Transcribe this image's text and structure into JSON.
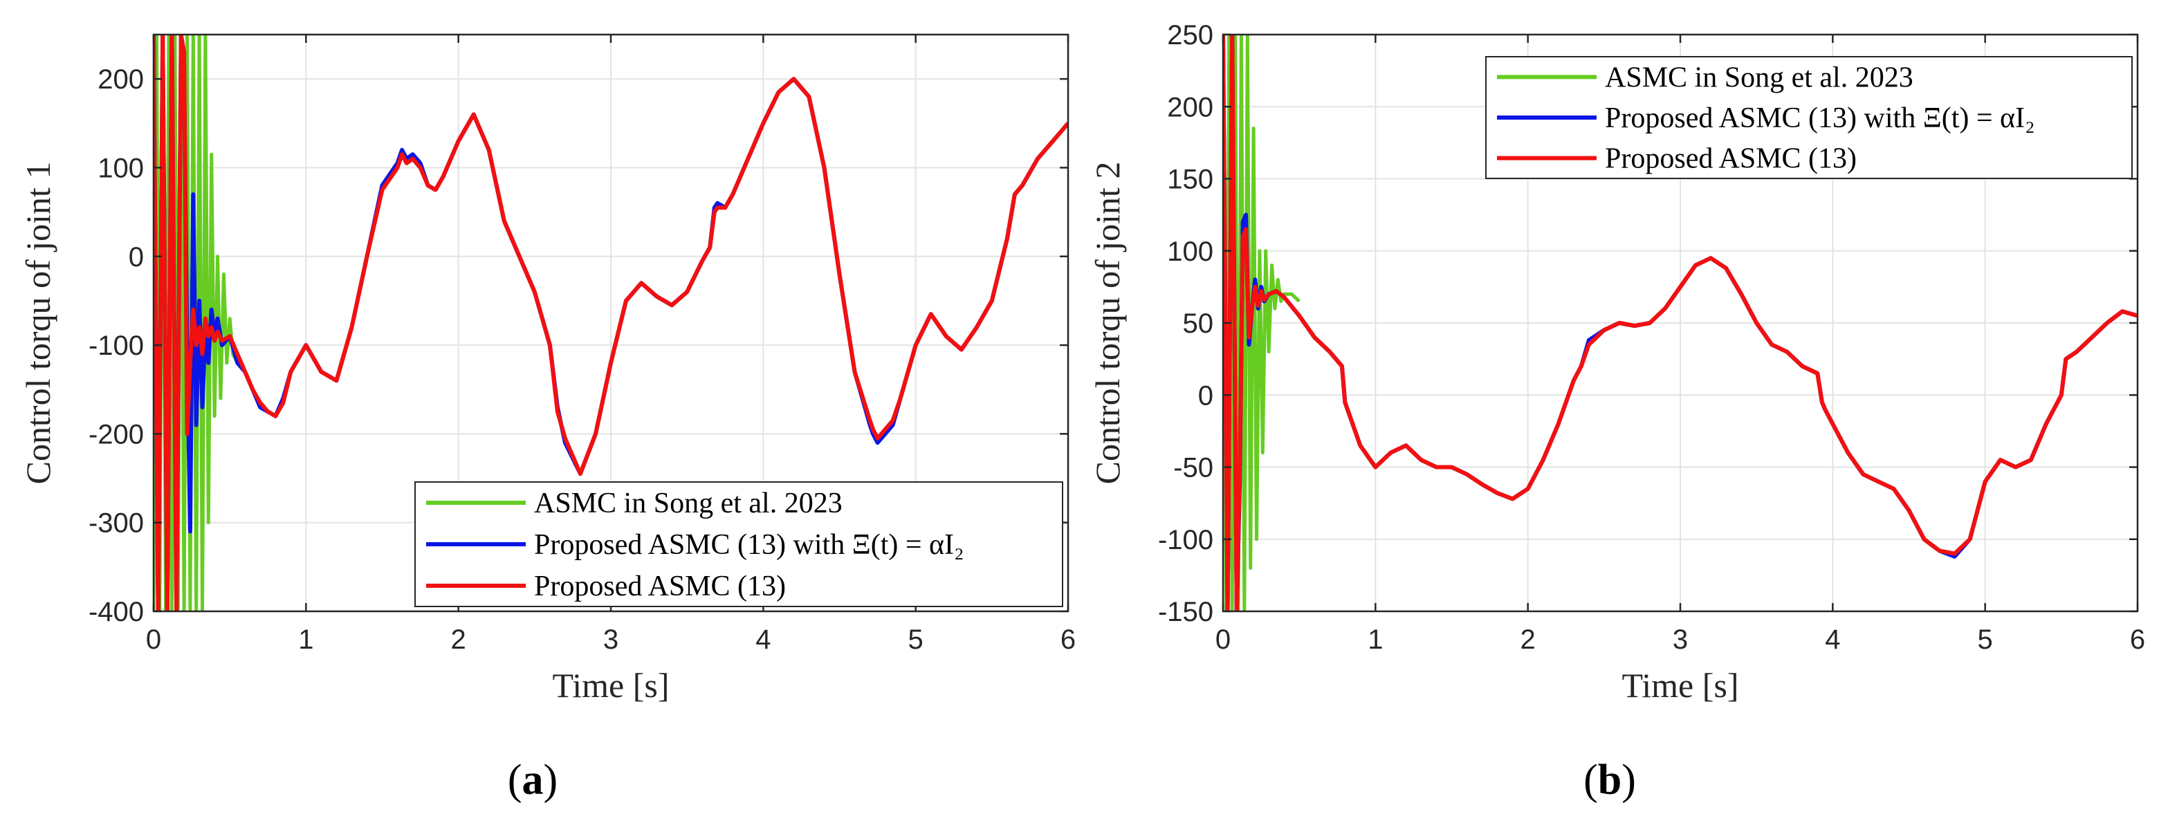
{
  "figure": {
    "captions": [
      {
        "open": "(",
        "letter": "a",
        "close": ")"
      },
      {
        "open": "(",
        "letter": "b",
        "close": ")"
      }
    ]
  },
  "chart_data": [
    {
      "type": "line",
      "title": "",
      "xlabel": "Time [s]",
      "ylabel": "Control torqu of joint 1",
      "xlim": [
        0,
        6
      ],
      "ylim": [
        -400,
        250
      ],
      "xticks": [
        0,
        1,
        2,
        3,
        4,
        5,
        6
      ],
      "yticks": [
        -400,
        -300,
        -200,
        -100,
        0,
        100,
        200
      ],
      "grid": true,
      "legend_position": "bottom-right",
      "series": [
        {
          "name": "ASMC in Song et al. 2023",
          "color": "#66cc22",
          "x": [
            0,
            0.02,
            0.04,
            0.06,
            0.08,
            0.1,
            0.12,
            0.14,
            0.16,
            0.18,
            0.2,
            0.22,
            0.24,
            0.26,
            0.28,
            0.3,
            0.32,
            0.34,
            0.36,
            0.38,
            0.4,
            0.42,
            0.44,
            0.46,
            0.48,
            0.5,
            0.52,
            0.55
          ],
          "y": [
            -400,
            250,
            -400,
            250,
            -400,
            250,
            -400,
            250,
            -400,
            250,
            -400,
            250,
            -400,
            250,
            -400,
            250,
            -400,
            250,
            -300,
            115,
            -180,
            0,
            -160,
            -20,
            -120,
            -70,
            -110,
            -120
          ]
        },
        {
          "name": "Proposed ASMC (13) with Ξ(t) = αI₂",
          "color": "#0a16e6",
          "x": [
            0,
            0.03,
            0.06,
            0.09,
            0.12,
            0.15,
            0.18,
            0.2,
            0.22,
            0.24,
            0.26,
            0.28,
            0.3,
            0.32,
            0.34,
            0.36,
            0.38,
            0.4,
            0.42,
            0.45,
            0.5,
            0.55,
            0.6,
            0.65,
            0.7,
            0.75,
            0.8,
            0.85,
            0.9,
            1.0,
            1.1,
            1.2,
            1.3,
            1.4,
            1.5,
            1.6,
            1.63,
            1.66,
            1.7,
            1.75,
            1.8,
            1.85,
            1.9,
            2.0,
            2.1,
            2.2,
            2.3,
            2.4,
            2.45,
            2.5,
            2.55,
            2.6,
            2.65,
            2.7,
            2.8,
            2.9,
            3.0,
            3.1,
            3.2,
            3.3,
            3.4,
            3.5,
            3.6,
            3.65,
            3.68,
            3.7,
            3.75,
            3.8,
            3.9,
            4.0,
            4.1,
            4.2,
            4.3,
            4.4,
            4.5,
            4.6,
            4.7,
            4.72,
            4.75,
            4.8,
            4.85,
            4.9,
            5.0,
            5.1,
            5.2,
            5.3,
            5.4,
            5.5,
            5.6,
            5.65,
            5.7,
            5.8,
            5.9,
            6.0
          ],
          "y": [
            250,
            -400,
            250,
            -400,
            250,
            -400,
            250,
            200,
            -100,
            -310,
            70,
            -190,
            -50,
            -170,
            -80,
            -120,
            -60,
            -90,
            -70,
            -100,
            -90,
            -120,
            -130,
            -150,
            -170,
            -175,
            -180,
            -160,
            -130,
            -100,
            -130,
            -140,
            -80,
            0,
            80,
            105,
            120,
            110,
            115,
            105,
            80,
            75,
            90,
            130,
            160,
            120,
            40,
            0,
            -20,
            -40,
            -70,
            -100,
            -170,
            -210,
            -245,
            -200,
            -120,
            -50,
            -30,
            -45,
            -55,
            -40,
            -5,
            10,
            55,
            60,
            55,
            70,
            110,
            150,
            185,
            200,
            180,
            100,
            -20,
            -130,
            -190,
            -200,
            -210,
            -200,
            -190,
            -160,
            -100,
            -65,
            -90,
            -105,
            -80,
            -50,
            20,
            70,
            80,
            110,
            130,
            150
          ]
        },
        {
          "name": "Proposed ASMC (13)",
          "color": "#f21010",
          "x": [
            0,
            0.03,
            0.06,
            0.09,
            0.12,
            0.15,
            0.18,
            0.2,
            0.22,
            0.24,
            0.26,
            0.28,
            0.3,
            0.32,
            0.34,
            0.36,
            0.38,
            0.4,
            0.42,
            0.45,
            0.5,
            0.55,
            0.6,
            0.65,
            0.7,
            0.75,
            0.8,
            0.85,
            0.9,
            1.0,
            1.1,
            1.2,
            1.3,
            1.4,
            1.5,
            1.6,
            1.63,
            1.66,
            1.7,
            1.75,
            1.8,
            1.85,
            1.9,
            2.0,
            2.1,
            2.2,
            2.3,
            2.4,
            2.45,
            2.5,
            2.55,
            2.6,
            2.65,
            2.7,
            2.8,
            2.9,
            3.0,
            3.1,
            3.2,
            3.3,
            3.4,
            3.5,
            3.6,
            3.65,
            3.68,
            3.7,
            3.75,
            3.8,
            3.9,
            4.0,
            4.1,
            4.2,
            4.3,
            4.4,
            4.5,
            4.6,
            4.7,
            4.72,
            4.75,
            4.8,
            4.85,
            4.9,
            5.0,
            5.1,
            5.2,
            5.3,
            5.4,
            5.5,
            5.6,
            5.65,
            5.7,
            5.8,
            5.9,
            6.0
          ],
          "y": [
            250,
            -400,
            250,
            -400,
            250,
            -400,
            250,
            230,
            -200,
            -120,
            -60,
            -100,
            -80,
            -110,
            -70,
            -90,
            -80,
            -95,
            -85,
            -95,
            -90,
            -110,
            -130,
            -150,
            -165,
            -175,
            -180,
            -165,
            -130,
            -100,
            -130,
            -140,
            -80,
            0,
            75,
            100,
            115,
            105,
            110,
            100,
            80,
            75,
            90,
            130,
            160,
            120,
            40,
            0,
            -20,
            -40,
            -70,
            -100,
            -175,
            -205,
            -245,
            -200,
            -120,
            -50,
            -30,
            -45,
            -55,
            -40,
            -5,
            10,
            50,
            55,
            55,
            70,
            110,
            150,
            185,
            200,
            180,
            100,
            -20,
            -130,
            -185,
            -195,
            -205,
            -195,
            -185,
            -160,
            -100,
            -65,
            -90,
            -105,
            -80,
            -50,
            20,
            70,
            80,
            110,
            130,
            150
          ]
        }
      ]
    },
    {
      "type": "line",
      "title": "",
      "xlabel": "Time [s]",
      "ylabel": "Control torqu of joint 2",
      "xlim": [
        0,
        6
      ],
      "ylim": [
        -150,
        250
      ],
      "xticks": [
        0,
        1,
        2,
        3,
        4,
        5,
        6
      ],
      "yticks": [
        -150,
        -100,
        -50,
        0,
        50,
        100,
        150,
        200,
        250
      ],
      "grid": true,
      "legend_position": "top-right",
      "series": [
        {
          "name": "ASMC in Song et al. 2023",
          "color": "#66cc22",
          "x": [
            0,
            0.02,
            0.04,
            0.06,
            0.08,
            0.1,
            0.12,
            0.14,
            0.16,
            0.18,
            0.2,
            0.22,
            0.24,
            0.26,
            0.28,
            0.3,
            0.32,
            0.34,
            0.36,
            0.38,
            0.4,
            0.45,
            0.5
          ],
          "y": [
            250,
            -150,
            250,
            -150,
            250,
            -150,
            250,
            -150,
            250,
            -120,
            185,
            -100,
            100,
            -40,
            100,
            30,
            90,
            60,
            80,
            65,
            70,
            70,
            65
          ]
        },
        {
          "name": "Proposed ASMC (13) with Ξ(t) = αI₂",
          "color": "#0a16e6",
          "x": [
            0,
            0.03,
            0.06,
            0.09,
            0.11,
            0.13,
            0.15,
            0.17,
            0.19,
            0.21,
            0.23,
            0.25,
            0.27,
            0.3,
            0.35,
            0.4,
            0.5,
            0.6,
            0.7,
            0.78,
            0.8,
            0.85,
            0.9,
            1.0,
            1.1,
            1.2,
            1.3,
            1.4,
            1.5,
            1.6,
            1.7,
            1.8,
            1.9,
            2.0,
            2.1,
            2.2,
            2.3,
            2.35,
            2.4,
            2.5,
            2.6,
            2.7,
            2.8,
            2.9,
            3.0,
            3.1,
            3.2,
            3.3,
            3.4,
            3.5,
            3.6,
            3.7,
            3.8,
            3.9,
            3.93,
            3.95,
            4.0,
            4.1,
            4.2,
            4.3,
            4.4,
            4.5,
            4.6,
            4.7,
            4.8,
            4.9,
            5.0,
            5.1,
            5.2,
            5.3,
            5.4,
            5.5,
            5.53,
            5.6,
            5.7,
            5.8,
            5.9,
            6.0
          ],
          "y": [
            250,
            -150,
            250,
            -150,
            -60,
            120,
            125,
            35,
            60,
            80,
            60,
            75,
            65,
            70,
            72,
            68,
            55,
            40,
            30,
            20,
            -5,
            -20,
            -35,
            -50,
            -40,
            -35,
            -45,
            -50,
            -50,
            -55,
            -62,
            -68,
            -72,
            -65,
            -45,
            -20,
            10,
            20,
            38,
            45,
            50,
            48,
            50,
            60,
            75,
            90,
            95,
            88,
            70,
            50,
            35,
            30,
            20,
            15,
            -5,
            -10,
            -20,
            -40,
            -55,
            -60,
            -65,
            -80,
            -100,
            -108,
            -112,
            -100,
            -60,
            -45,
            -50,
            -45,
            -20,
            0,
            25,
            30,
            40,
            50,
            58,
            55
          ]
        },
        {
          "name": "Proposed ASMC (13)",
          "color": "#f21010",
          "x": [
            0,
            0.03,
            0.06,
            0.09,
            0.11,
            0.13,
            0.15,
            0.17,
            0.19,
            0.21,
            0.23,
            0.25,
            0.27,
            0.3,
            0.35,
            0.4,
            0.5,
            0.6,
            0.7,
            0.78,
            0.8,
            0.85,
            0.9,
            1.0,
            1.1,
            1.2,
            1.3,
            1.4,
            1.5,
            1.6,
            1.7,
            1.8,
            1.9,
            2.0,
            2.1,
            2.2,
            2.3,
            2.35,
            2.4,
            2.5,
            2.6,
            2.7,
            2.8,
            2.9,
            3.0,
            3.1,
            3.2,
            3.3,
            3.4,
            3.5,
            3.6,
            3.7,
            3.8,
            3.9,
            3.93,
            3.95,
            4.0,
            4.1,
            4.2,
            4.3,
            4.4,
            4.5,
            4.6,
            4.7,
            4.8,
            4.9,
            5.0,
            5.1,
            5.2,
            5.3,
            5.4,
            5.5,
            5.53,
            5.6,
            5.7,
            5.8,
            5.9,
            6.0
          ],
          "y": [
            250,
            -150,
            250,
            -150,
            -50,
            110,
            115,
            40,
            60,
            75,
            62,
            72,
            66,
            70,
            72,
            68,
            55,
            40,
            30,
            20,
            -5,
            -20,
            -35,
            -50,
            -40,
            -35,
            -45,
            -50,
            -50,
            -55,
            -62,
            -68,
            -72,
            -65,
            -45,
            -20,
            10,
            20,
            35,
            45,
            50,
            48,
            50,
            60,
            75,
            90,
            95,
            88,
            70,
            50,
            35,
            30,
            20,
            15,
            -5,
            -10,
            -20,
            -40,
            -55,
            -60,
            -65,
            -80,
            -100,
            -108,
            -110,
            -100,
            -60,
            -45,
            -50,
            -45,
            -20,
            0,
            25,
            30,
            40,
            50,
            58,
            55
          ]
        }
      ]
    }
  ]
}
